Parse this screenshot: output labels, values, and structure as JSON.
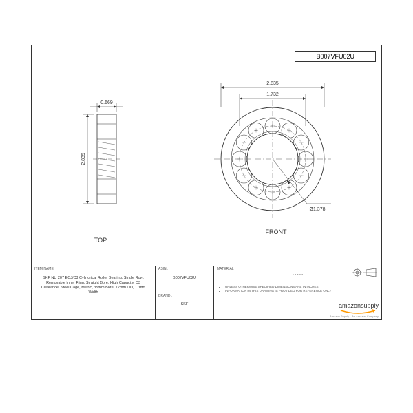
{
  "asin_header": "B007VFU02U",
  "top_view": {
    "label": "TOP",
    "width_dim": "0.669",
    "height_dim": "2.835",
    "outer_w": 28,
    "outer_h": 130,
    "stroke": "#333333",
    "hatch_count": 11
  },
  "front_view": {
    "label": "FRONT",
    "outer_dim": "2.835",
    "pitch_dim": "1.732",
    "bore_dim": "Ø1.378",
    "outer_d": 150,
    "pitch_d": 96,
    "bore_d": 74,
    "roller_count": 12,
    "roller_d": 22,
    "stroke": "#333333",
    "centerline": "#333333"
  },
  "title_block": {
    "item_name_label": "ITEM NAME:",
    "item_name": "SKF NU 207 ECJ/C3 Cylindrical Roller Bearing, Single Row, Removable Inner Ring, Straight Bore, High Capacity, C3 Clearance, Steel Cage, Metric, 35mm Bore, 72mm OD, 17mm Width",
    "asin_label": "ASIN :",
    "asin": "B007VFU02U",
    "brand_label": "BRAND :",
    "brand": "SKF",
    "material_label": "MATERIAL :",
    "material": "- - - - -",
    "note1": "UNLESS OTHERWISE SPECIFIED DIMENSIONS ARE IN INCHES",
    "note2": "INFORMATION IN THIS DRAWING IS PROVIDED FOR REFERENCE ONLY",
    "logo": "amazonsupply",
    "logo_sub": "Amazon Supply – An Amazon Company"
  },
  "colors": {
    "page_border": "#333333",
    "background": "#ffffff",
    "text": "#333333"
  }
}
